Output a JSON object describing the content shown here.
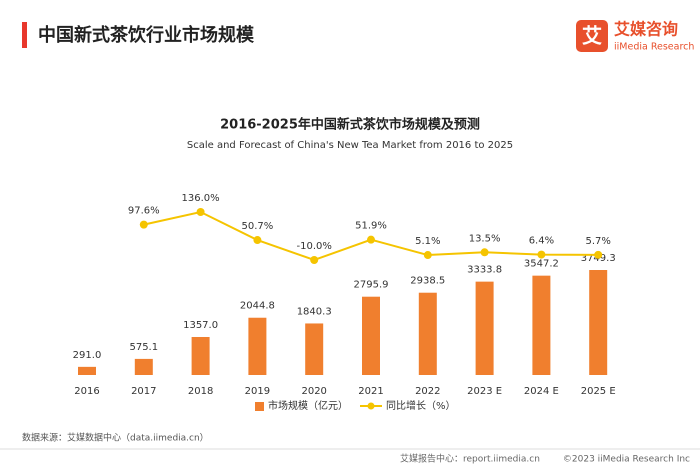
{
  "header": {
    "title": "中国新式茶饮行业市场规模",
    "logo_icon": "艾",
    "logo_name": "艾媒咨询",
    "logo_sub": "iiMedia Research"
  },
  "chart_data": {
    "type": "bar",
    "title": "2016-2025年中国新式茶饮市场规模及预测",
    "subtitle": "Scale and Forecast of China's New Tea Market from 2016 to 2025",
    "categories": [
      "2016",
      "2017",
      "2018",
      "2019",
      "2020",
      "2021",
      "2022",
      "2023 E",
      "2024 E",
      "2025 E"
    ],
    "series": [
      {
        "name": "市场规模（亿元）",
        "type": "bar",
        "color": "#f07f2e",
        "values": [
          291.0,
          575.1,
          1357.0,
          2044.8,
          1840.3,
          2795.9,
          2938.5,
          3333.8,
          3547.2,
          3749.3
        ],
        "value_labels": [
          "291.0",
          "575.1",
          "1357.0",
          "2044.8",
          "1840.3",
          "2795.9",
          "2938.5",
          "3333.8",
          "3547.2",
          "3749.3"
        ]
      },
      {
        "name": "同比增长（%）",
        "type": "line",
        "axis": "y2",
        "color": "#f5c400",
        "values": [
          null,
          97.6,
          136.0,
          50.7,
          -10.0,
          51.9,
          5.1,
          13.5,
          6.4,
          5.7
        ],
        "value_labels": [
          null,
          "97.6%",
          "136.0%",
          "50.7%",
          "-10.0%",
          "51.9%",
          "5.1%",
          "13.5%",
          "6.4%",
          "5.7%"
        ]
      }
    ],
    "legend": "bottom"
  },
  "source": "数据来源：艾媒数据中心（data.iimedia.cn）",
  "footer": {
    "left": "艾媒报告中心：report.iimedia.cn",
    "right": "©2023  iiMedia Research  Inc"
  }
}
